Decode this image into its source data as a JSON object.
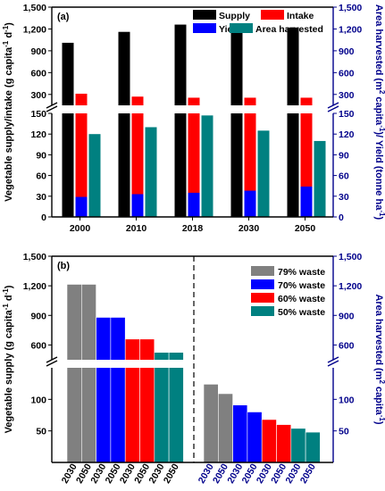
{
  "chart_data": [
    {
      "type": "bar",
      "panel_label": "(a)",
      "categories": [
        "2000",
        "2010",
        "2018",
        "2030",
        "2050"
      ],
      "series": [
        {
          "name": "Supply",
          "axis": "left",
          "values": [
            1010,
            1160,
            1260,
            1220,
            1220
          ]
        },
        {
          "name": "Intake",
          "axis": "left",
          "values": [
            310,
            270,
            255,
            255,
            255
          ]
        },
        {
          "name": "Yield",
          "axis": "right",
          "values": [
            29,
            33,
            35,
            38,
            44
          ]
        },
        {
          "name": "Area harvested",
          "axis": "right",
          "values": [
            120,
            130,
            147,
            125,
            110
          ]
        }
      ],
      "ylabel_left": "Vegetable supply/intake (g capita⁻¹ d⁻¹)",
      "ylabel_right": "Area harvested (m² capita⁻¹)/ Yield (tonne ha⁻¹)",
      "y_broken": true,
      "ylim_lower": [
        0,
        150
      ],
      "ylim_upper": [
        150,
        1500
      ],
      "yticks_lower": [
        "0",
        "30",
        "60",
        "90",
        "120",
        "150"
      ],
      "yticks_upper": [
        "300",
        "600",
        "900",
        "1,200",
        "1,500"
      ],
      "legend_position": "top-right",
      "colors": {
        "Supply": "#000000",
        "Intake": "#ff0000",
        "Yield": "#0000ff",
        "Area harvested": "#008080"
      }
    },
    {
      "type": "bar",
      "panel_label": "(b)",
      "groups": [
        {
          "name": "79% waste",
          "color": "#808080",
          "supply": [
            1215,
            1215
          ],
          "area": [
            124,
            109
          ]
        },
        {
          "name": "70% waste",
          "color": "#0000ff",
          "supply": [
            880,
            880
          ],
          "area": [
            91,
            80
          ]
        },
        {
          "name": "60% waste",
          "color": "#ff0000",
          "supply": [
            660,
            660
          ],
          "area": [
            68,
            60
          ]
        },
        {
          "name": "50% waste",
          "color": "#008080",
          "supply": [
            525,
            525
          ],
          "area": [
            54,
            48
          ]
        }
      ],
      "bar_labels_left": [
        "2030",
        "2050",
        "2030",
        "2050",
        "2030",
        "2050",
        "2030",
        "2050"
      ],
      "bar_labels_right": [
        "2030",
        "2050",
        "2030",
        "2050",
        "2030",
        "2050",
        "2030",
        "2050"
      ],
      "ylabel_left": "Vegetable supply (g capita⁻¹ d⁻¹)",
      "ylabel_right": "Area harvested (m² capita⁻¹)",
      "y_broken": true,
      "ylim_lower": [
        0,
        150
      ],
      "ylim_upper": [
        450,
        1500
      ],
      "yticks_lower": [
        "50",
        "100"
      ],
      "yticks_upper": [
        "600",
        "900",
        "1,200",
        "1,500"
      ],
      "legend_position": "top-right"
    }
  ]
}
